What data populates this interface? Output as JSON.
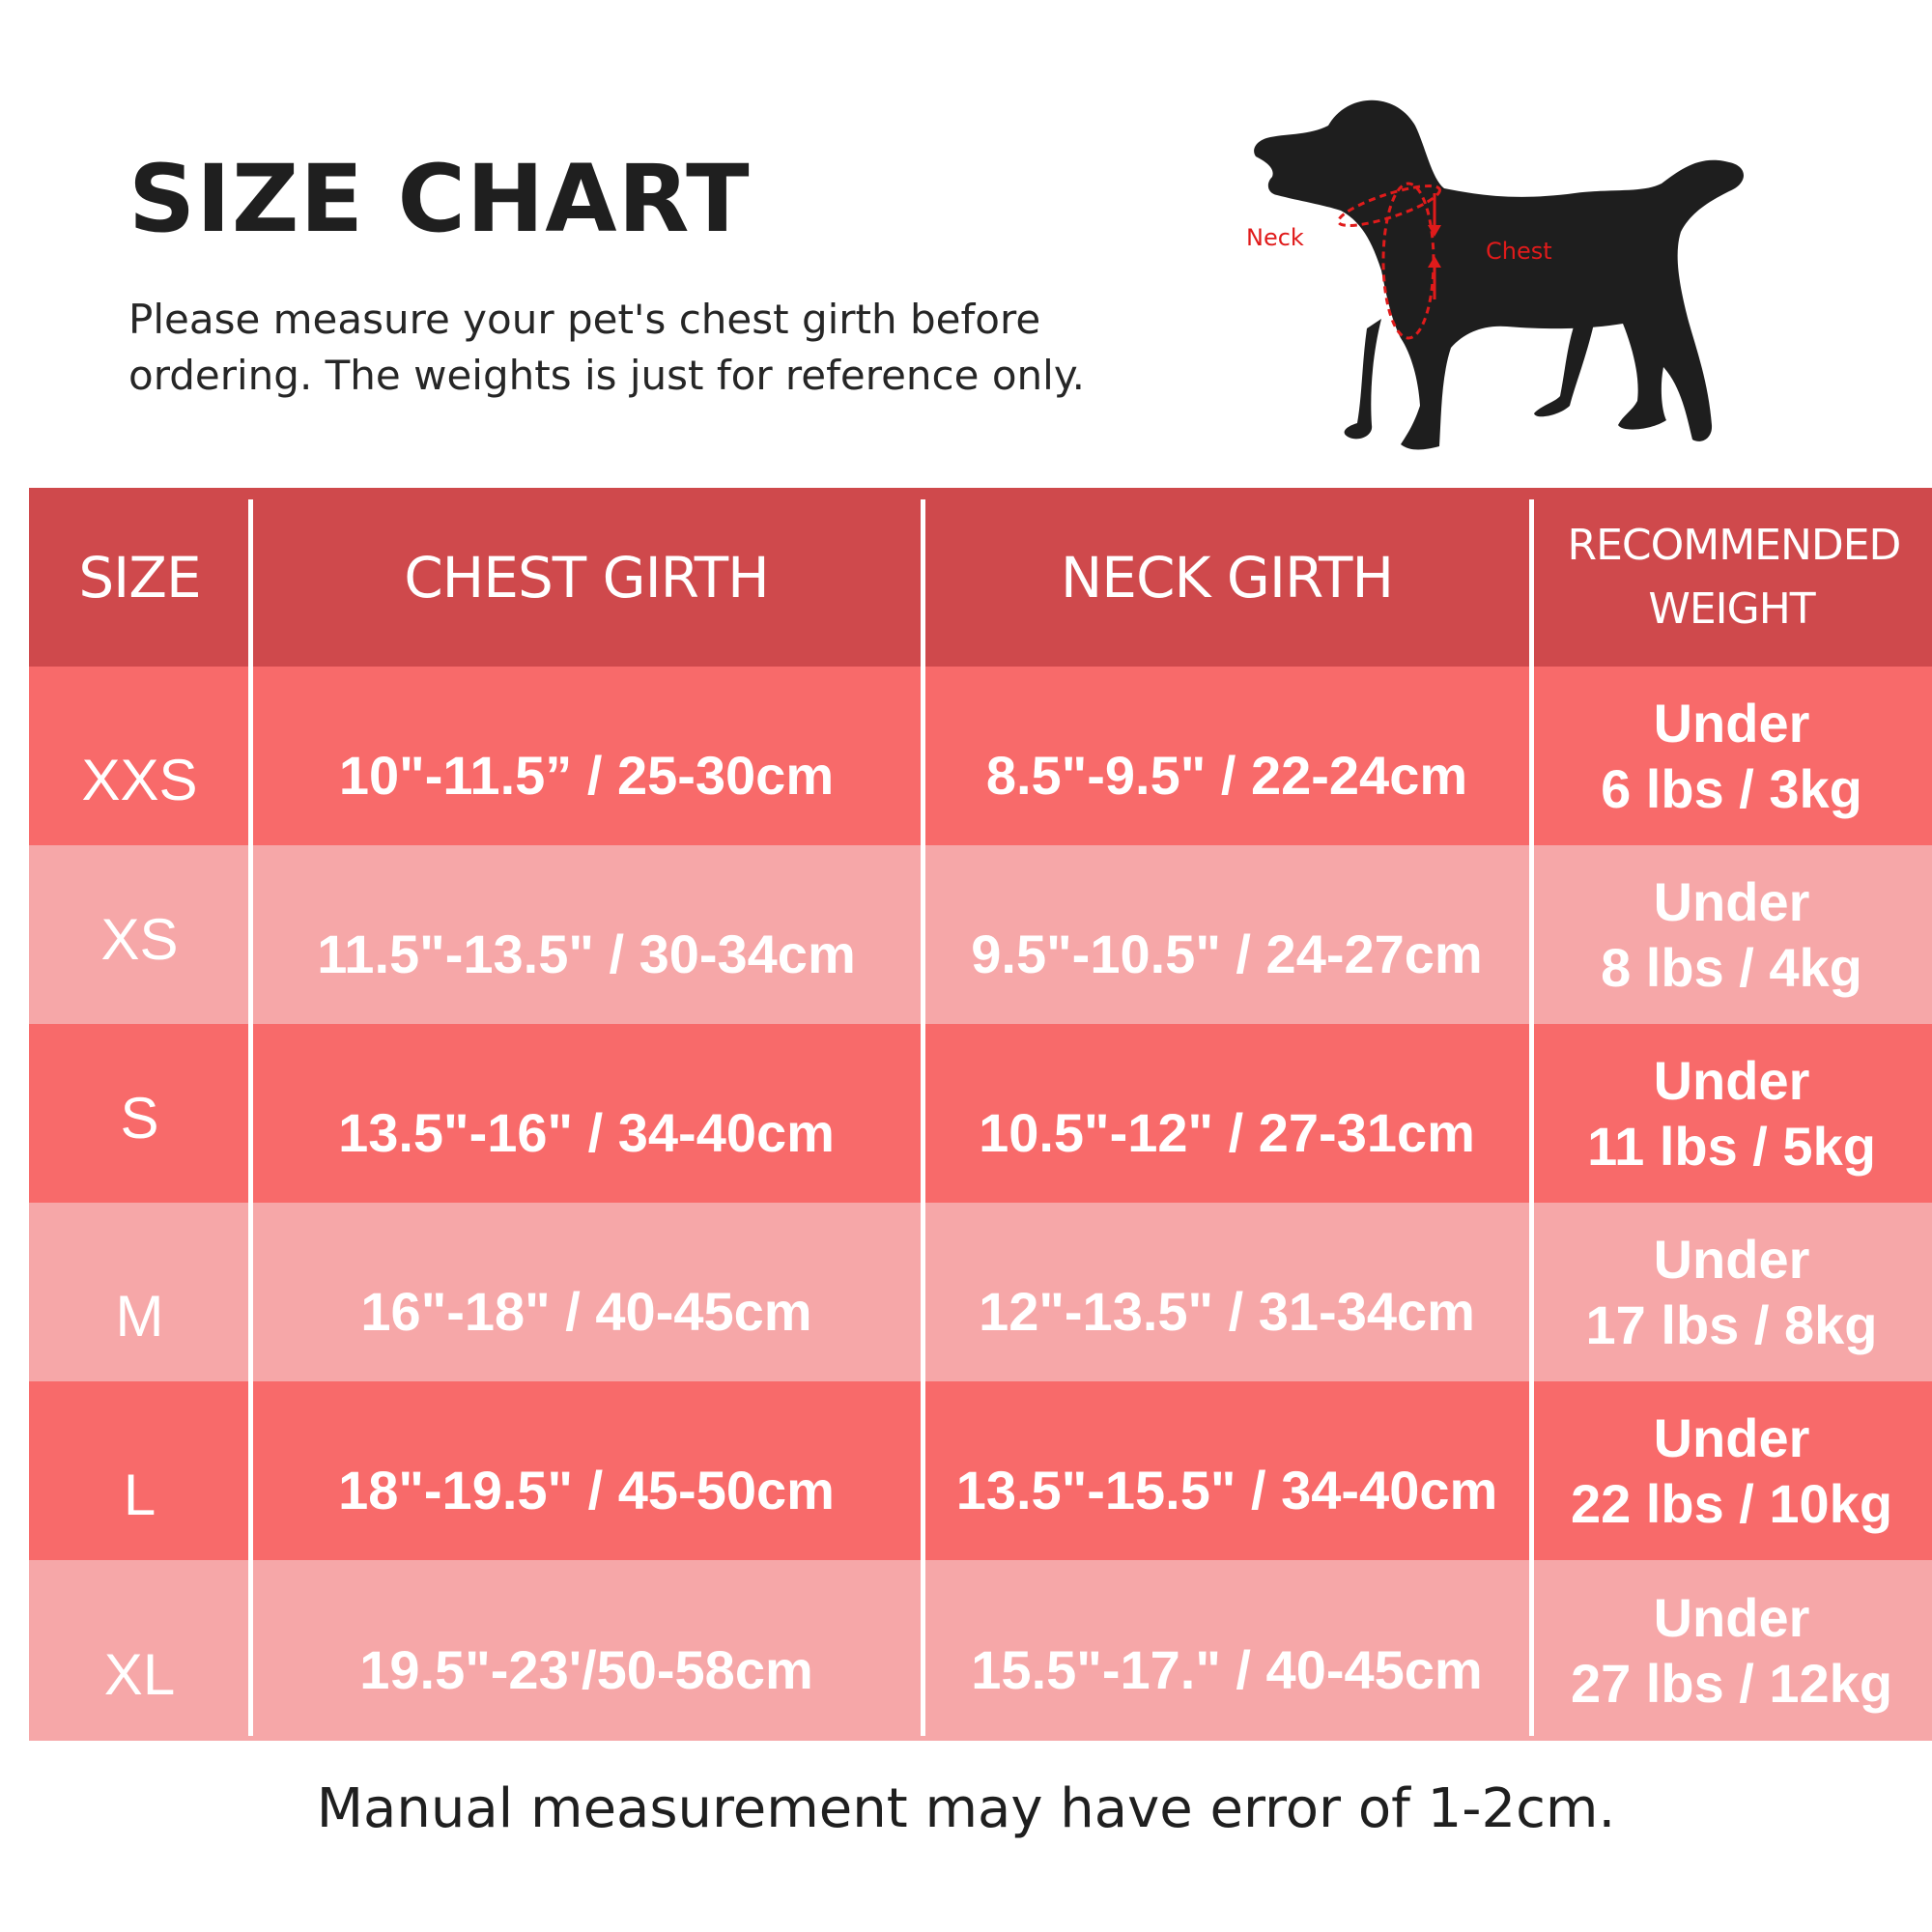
{
  "title": "SIZE CHART",
  "subtitle": "Please measure your pet's chest girth before ordering. The weights is just for reference only.",
  "diagram": {
    "neck_label": "Neck",
    "chest_label": "Chest"
  },
  "table": {
    "headers": [
      "SIZE",
      "CHEST GIRTH",
      "NECK GIRTH",
      "RECOMMENDED WEIGHT"
    ],
    "rows": [
      {
        "size": "XXS",
        "chest": "10\"-11.5” / 25-30cm",
        "neck": "8.5\"-9.5\" / 22-24cm",
        "weight_line1": "Under",
        "weight_line2": "6 lbs / 3kg"
      },
      {
        "size": "XS",
        "chest": "11.5\"-13.5\" / 30-34cm",
        "neck": "9.5\"-10.5\" / 24-27cm",
        "weight_line1": "Under",
        "weight_line2": "8 lbs / 4kg"
      },
      {
        "size": "S",
        "chest": "13.5\"-16\" / 34-40cm",
        "neck": "10.5\"-12\" / 27-31cm",
        "weight_line1": "Under",
        "weight_line2": "11 lbs / 5kg"
      },
      {
        "size": "M",
        "chest": "16\"-18\" / 40-45cm",
        "neck": "12\"-13.5\" / 31-34cm",
        "weight_line1": "Under",
        "weight_line2": "17 lbs / 8kg"
      },
      {
        "size": "L",
        "chest": "18\"-19.5\" / 45-50cm",
        "neck": "13.5\"-15.5\" / 34-40cm",
        "weight_line1": "Under",
        "weight_line2": "22 lbs / 10kg"
      },
      {
        "size": "XL",
        "chest": "19.5\"-23'/50-58cm",
        "neck": "15.5\"-17.\" / 40-45cm",
        "weight_line1": "Under",
        "weight_line2": "27 lbs / 12kg"
      }
    ]
  },
  "footer": "Manual measurement may have error of 1-2cm.",
  "colors": {
    "header_bg": "#cf494c",
    "row_dark": "#f86a6a",
    "row_light": "#f6a7a8",
    "accent_red": "#e01b1b"
  }
}
